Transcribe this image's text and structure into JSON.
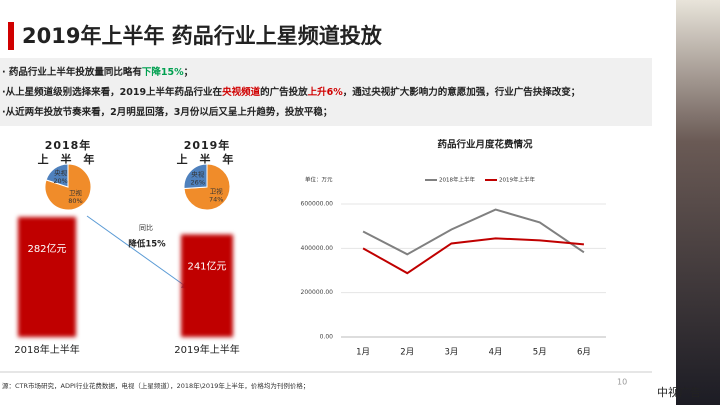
{
  "title": "2019年上半年 药品行业上星频道投放",
  "bullets": [
    [
      {
        "text": "· 药品行业上半年投放量同比略有"
      },
      {
        "text": "下降15%",
        "color": "#00a050"
      },
      {
        "text": "；"
      }
    ],
    [
      {
        "text": "·从上星频道级别选择来看，2019上半年药品行业在"
      },
      {
        "text": "央视频道",
        "color": "#d00000"
      },
      {
        "text": "的广告投放"
      },
      {
        "text": "上升6%",
        "color": "#d00000"
      },
      {
        "text": "，通过央视扩大影响力的意愿加强，行业广告抉择改变；"
      }
    ],
    [
      {
        "text": "·从近两年投放节奏来看，2月明显回落，3月份以后又呈上升趋势，投放平稳；"
      }
    ]
  ],
  "source": "源：CTR市场研究，ADPI行业花费数据，电视（上星频道），2018年\\2019年上半年，价格均为刊例价格；",
  "page_number": "10",
  "watermark": "中视广告",
  "chart_data": [
    {
      "type": "pie",
      "title": [
        "2018年",
        "上 半 年"
      ],
      "labels": [
        "卫视",
        "央视"
      ],
      "values": [
        80,
        20
      ],
      "value_labels": [
        "80%",
        "20%"
      ],
      "colors": [
        "#f08c2a",
        "#4f81bd"
      ]
    },
    {
      "type": "pie",
      "title": [
        "2019年",
        "上 半 年"
      ],
      "labels": [
        "卫视",
        "央视"
      ],
      "values": [
        74,
        26
      ],
      "value_labels": [
        "74%",
        "26%"
      ],
      "colors": [
        "#f08c2a",
        "#4f81bd"
      ]
    },
    {
      "type": "bar",
      "categories": [
        "2018年上半年",
        "2019年上半年"
      ],
      "values": [
        282,
        241
      ],
      "value_labels": [
        "282亿元",
        "241亿元"
      ],
      "color": "#c00000",
      "annotation": [
        "同比",
        "降低15%"
      ]
    },
    {
      "type": "line",
      "title": "药品行业月度花费情况",
      "unit_label": "单位：万元",
      "categories": [
        "1月",
        "2月",
        "3月",
        "4月",
        "5月",
        "6月"
      ],
      "series": [
        {
          "name": "2018年上半年",
          "color": "#808080",
          "values": [
            476000,
            373000,
            485000,
            575000,
            517000,
            382000
          ]
        },
        {
          "name": "2019年上半年",
          "color": "#c00000",
          "values": [
            400000,
            288000,
            422000,
            445000,
            436000,
            418000
          ]
        }
      ],
      "ylim": [
        0,
        600000
      ],
      "yticks": [
        {
          "value": 0,
          "label": "0.00"
        },
        {
          "value": 200000,
          "label": "200000.00"
        },
        {
          "value": 400000,
          "label": "400000.00"
        },
        {
          "value": 600000,
          "label": "600000.00"
        }
      ],
      "grid": true
    }
  ]
}
